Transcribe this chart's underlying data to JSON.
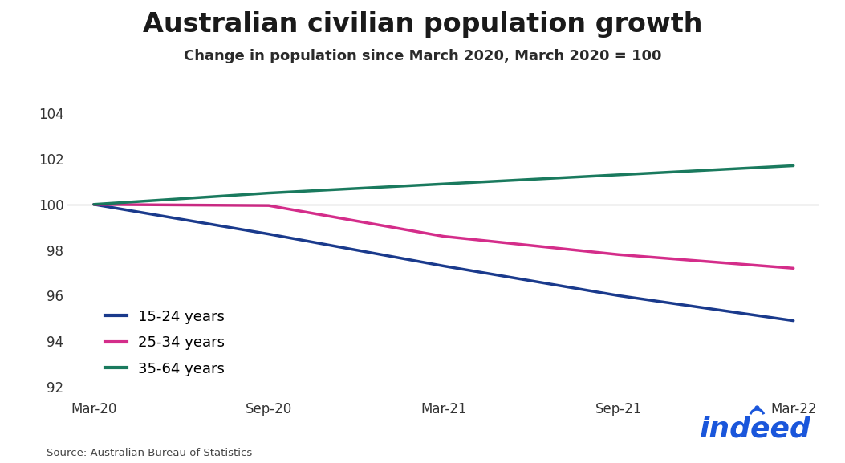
{
  "title": "Australian civilian population growth",
  "subtitle": "Change in population since March 2020, March 2020 = 100",
  "source": "Source: Australian Bureau of Statistics",
  "x_labels": [
    "Mar-20",
    "Sep-20",
    "Mar-21",
    "Sep-21",
    "Mar-22"
  ],
  "x_values": [
    0,
    1,
    2,
    3,
    4
  ],
  "series": [
    {
      "label": "15-24 years",
      "color": "#1a3a8c",
      "values": [
        100,
        98.7,
        97.3,
        96.0,
        94.9
      ]
    },
    {
      "label": "25-34 years",
      "color": "#d42d8a",
      "values": [
        100,
        99.95,
        98.6,
        97.8,
        97.2
      ]
    },
    {
      "label": "35-64 years",
      "color": "#1a7a5e",
      "values": [
        100,
        100.5,
        100.9,
        101.3,
        101.7
      ]
    }
  ],
  "ylim": [
    91.5,
    104.5
  ],
  "yticks": [
    92,
    94,
    96,
    98,
    100,
    102,
    104
  ],
  "hline_y": 100,
  "background_color": "#ffffff",
  "title_fontsize": 24,
  "subtitle_fontsize": 13,
  "legend_fontsize": 13,
  "tick_fontsize": 12,
  "line_width": 2.5,
  "title_color": "#1a1a1a",
  "subtitle_color": "#2a2a2a",
  "indeed_color": "#1a56db",
  "indeed_text": "indeed"
}
